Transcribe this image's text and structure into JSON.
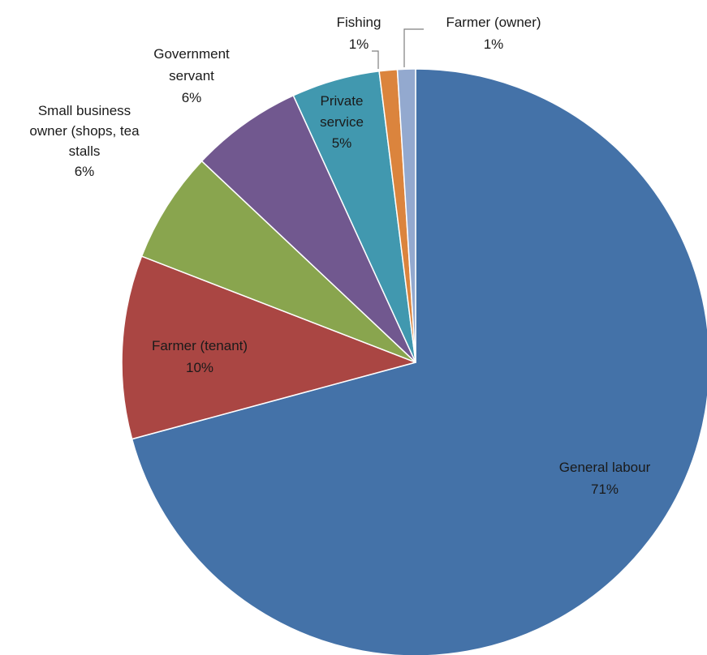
{
  "chart_data": {
    "type": "pie",
    "title": "",
    "start_angle_deg": 0,
    "direction": "clockwise",
    "slices": [
      {
        "label": [
          "General labour",
          "71%"
        ],
        "value": 71.5,
        "color": "#4472a8"
      },
      {
        "label": [
          "Farmer (tenant)",
          "10%"
        ],
        "value": 10.2,
        "color": "#aa4643"
      },
      {
        "label": [
          "Small business",
          "owner (shops, tea",
          "stalls",
          "6%"
        ],
        "value": 6.2,
        "color": "#89a54e"
      },
      {
        "label": [
          "Government",
          "servant",
          "6%"
        ],
        "value": 6.2,
        "color": "#71588f"
      },
      {
        "label": [
          "Private",
          "service",
          "5%"
        ],
        "value": 4.9,
        "color": "#4198af"
      },
      {
        "label": [
          "Fishing",
          "1%"
        ],
        "value": 1.0,
        "color": "#db843d"
      },
      {
        "label": [
          "Farmer (owner)",
          "1%"
        ],
        "value": 1.0,
        "color": "#93a9cf"
      }
    ]
  }
}
